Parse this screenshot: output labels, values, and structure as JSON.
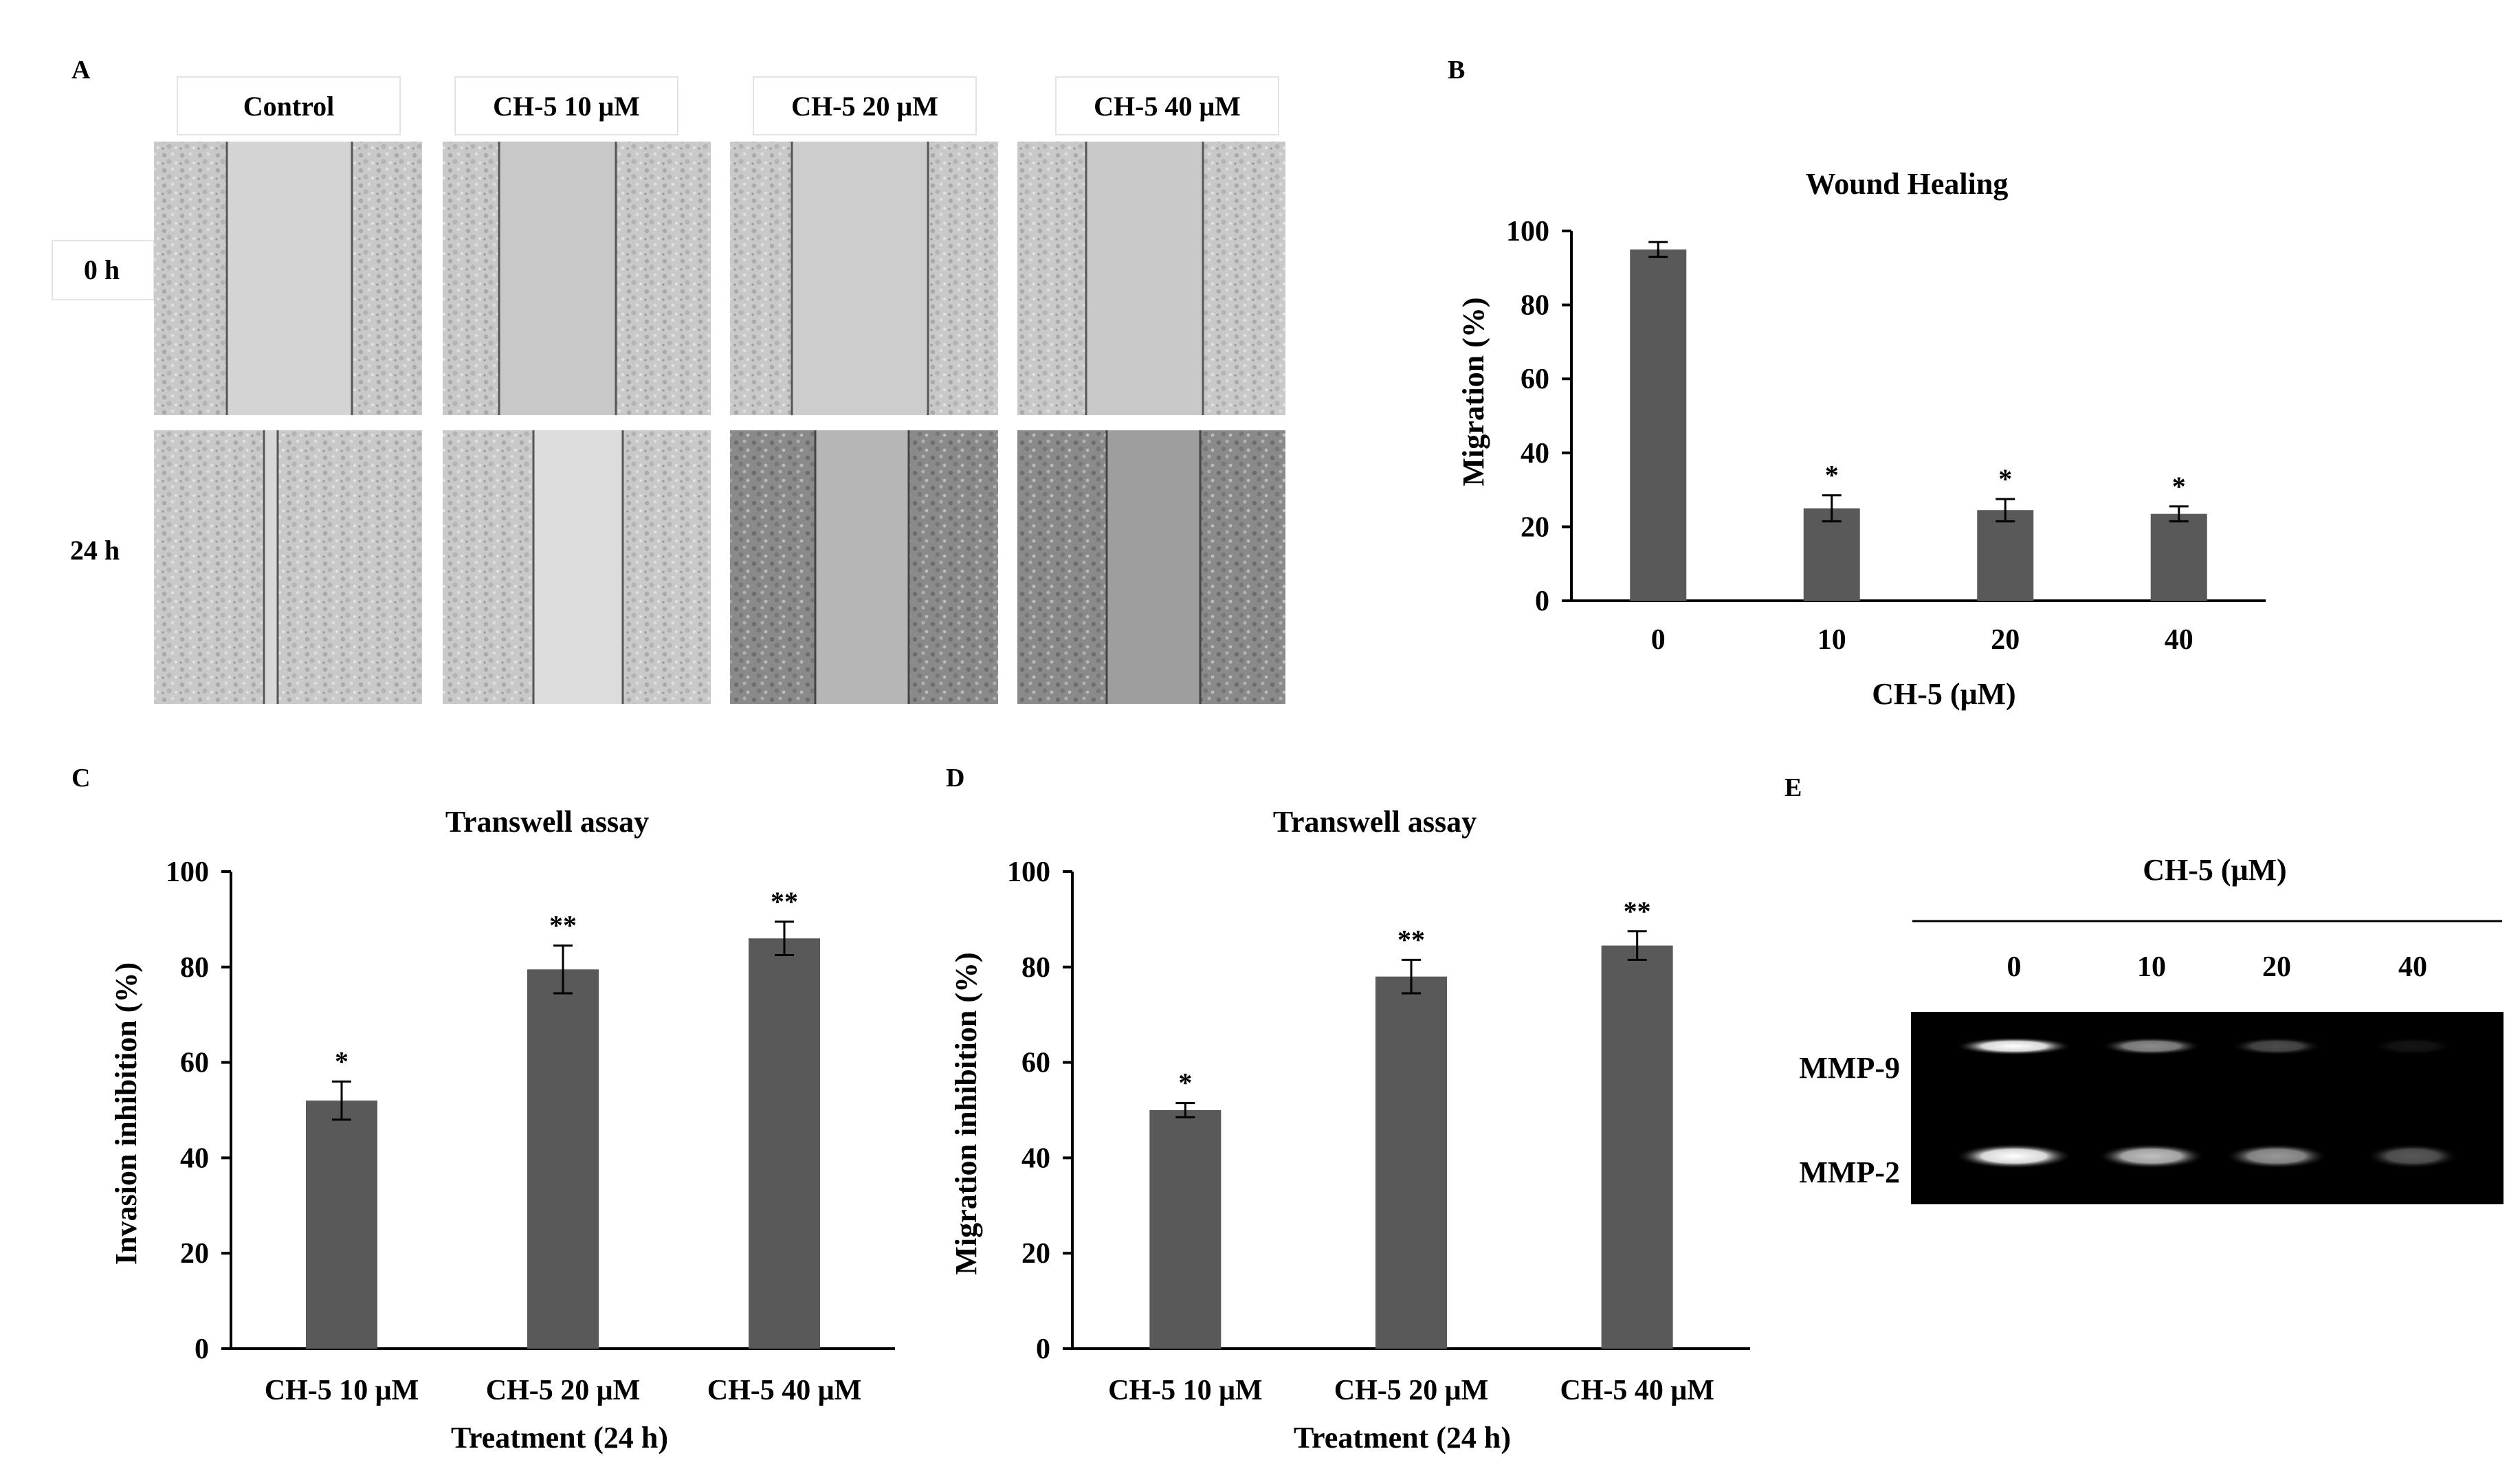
{
  "panels": {
    "a": {
      "letter": "A",
      "columns": [
        "Control",
        "CH-5 10 μM",
        "CH-5 20 μM",
        "CH-5 40 μM"
      ],
      "rows": [
        "0 h",
        "24 h"
      ]
    },
    "e": {
      "letter": "E",
      "title": "CH-5 (μM)",
      "lanes": [
        "0",
        "10",
        "20",
        "40"
      ],
      "bands": [
        "MMP-9",
        "MMP-2"
      ],
      "mmp9_intensity": [
        1.0,
        0.55,
        0.3,
        0.08
      ],
      "mmp2_intensity": [
        1.0,
        0.75,
        0.6,
        0.35
      ]
    }
  },
  "colors": {
    "bar": "#595959",
    "axis": "#000000",
    "gel": "#000000"
  },
  "chart_data": [
    {
      "id": "b",
      "letter": "B",
      "type": "bar",
      "title": "Wound Healing",
      "xlabel": "CH-5 (μM)",
      "ylabel": "Migration (%)",
      "categories": [
        "0",
        "10",
        "20",
        "40"
      ],
      "values": [
        95,
        25,
        24.5,
        23.5
      ],
      "errors": [
        2,
        3.5,
        3,
        2
      ],
      "sig": [
        "",
        "*",
        "*",
        "*"
      ],
      "ylim": [
        0,
        100
      ],
      "yticks": [
        0,
        20,
        40,
        60,
        80,
        100
      ]
    },
    {
      "id": "c",
      "letter": "C",
      "type": "bar",
      "title": "Transwell assay",
      "xlabel": "Treatment (24 h)",
      "ylabel": "Invasion inhibition (%)",
      "categories": [
        "CH-5 10 μM",
        "CH-5 20 μM",
        "CH-5 40 μM"
      ],
      "values": [
        52,
        79.5,
        86
      ],
      "errors": [
        4,
        5,
        3.5
      ],
      "sig": [
        "*",
        "**",
        "**"
      ],
      "ylim": [
        0,
        100
      ],
      "yticks": [
        0,
        20,
        40,
        60,
        80,
        100
      ]
    },
    {
      "id": "d",
      "letter": "D",
      "type": "bar",
      "title": "Transwell assay",
      "xlabel": "Treatment (24 h)",
      "ylabel": "Migration inhibition (%)",
      "categories": [
        "CH-5 10 μM",
        "CH-5 20 μM",
        "CH-5 40 μM"
      ],
      "values": [
        50,
        78,
        84.5
      ],
      "errors": [
        1.5,
        3.5,
        3
      ],
      "sig": [
        "*",
        "**",
        "**"
      ],
      "ylim": [
        0,
        100
      ],
      "yticks": [
        0,
        20,
        40,
        60,
        80,
        100
      ]
    }
  ]
}
